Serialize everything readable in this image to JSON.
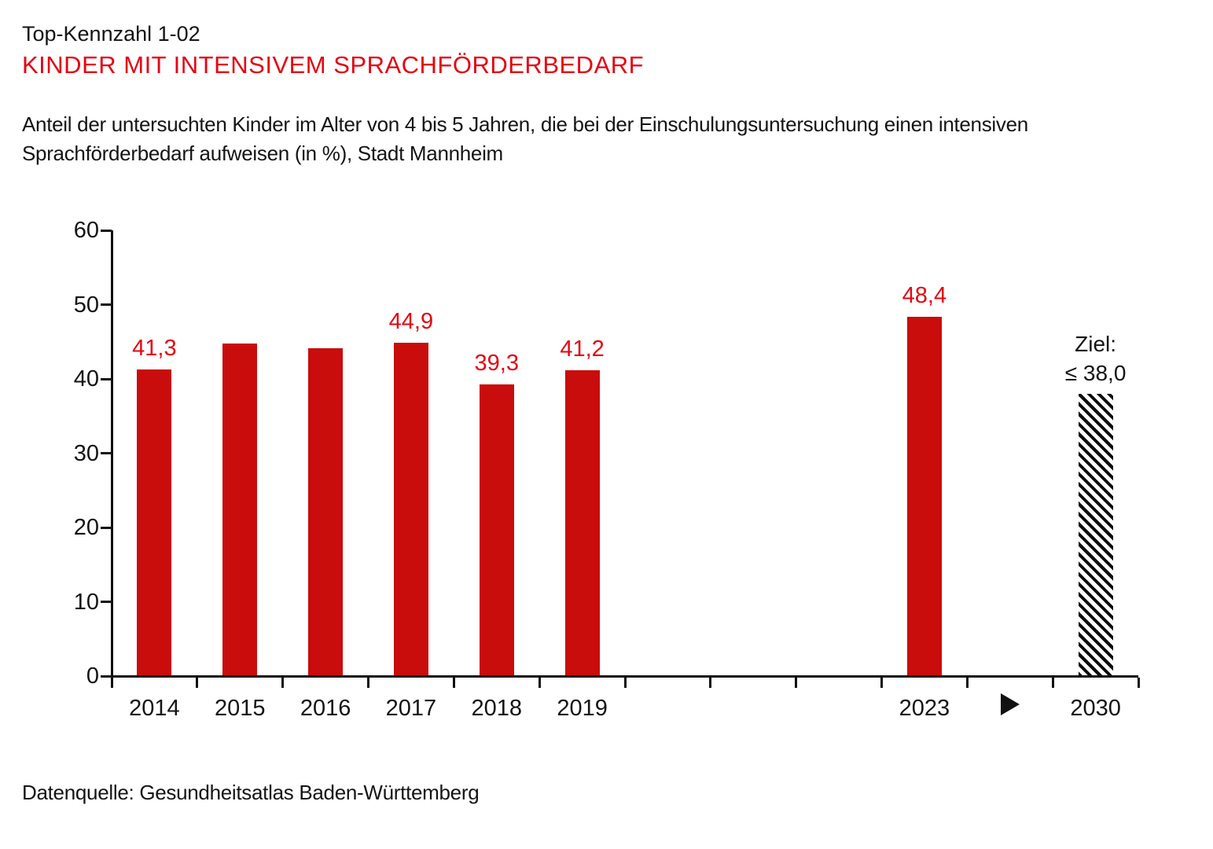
{
  "header": {
    "kicker": "Top-Kennzahl 1-02",
    "title": "KINDER MIT INTENSIVEM SPRACHFÖRDERBEDARF",
    "subtitle_lines": [
      "Anteil der untersuchten Kinder im Alter von 4 bis 5 Jahren, die bei der Einschulungsuntersuchung einen intensiven",
      "Sprachförderbedarf aufweisen (in %), Stadt Mannheim"
    ]
  },
  "footer": {
    "source": "Datenquelle: Gesundheitsatlas Baden-Württemberg"
  },
  "colors": {
    "bar": "#c90c0c",
    "accent_text": "#e30613",
    "axis": "#111111",
    "hatch": "#0b0b0b"
  },
  "chart_data": {
    "type": "bar",
    "categories": [
      "2014",
      "2015",
      "2016",
      "2017",
      "2018",
      "2019",
      "2023",
      "2030"
    ],
    "values": [
      41.3,
      44.8,
      44.1,
      44.9,
      39.3,
      41.2,
      48.4,
      38.0
    ],
    "value_labels": [
      "41,3",
      "",
      "",
      "44,9",
      "39,3",
      "41,2",
      "48,4",
      ""
    ],
    "slots": [
      0,
      1,
      2,
      3,
      4,
      5,
      9,
      11
    ],
    "total_slots": 12,
    "bar_styles": [
      "solid",
      "solid",
      "solid",
      "solid",
      "solid",
      "solid",
      "solid",
      "hatched"
    ],
    "arrow": {
      "slot": 10,
      "icon": "right-triangle"
    },
    "target": {
      "slot": 11,
      "value": 38.0,
      "lines": [
        "Ziel:",
        "≤ 38,0"
      ]
    },
    "unit": "%",
    "xlabel": "",
    "ylabel": "",
    "ylim": [
      0,
      60
    ],
    "y_ticks": [
      0,
      10,
      20,
      30,
      40,
      50,
      60
    ],
    "grid": false,
    "legend": false
  }
}
